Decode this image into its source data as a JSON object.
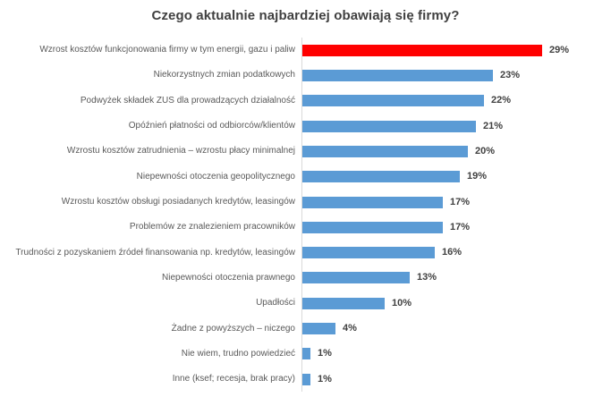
{
  "colors": {
    "highlight_bar": "#ff0000",
    "bar": "#5b9bd5",
    "axis_line": "#d9d9d9",
    "title_text": "#404040",
    "category_text": "#595959",
    "value_text": "#404040"
  },
  "chart_data": {
    "type": "bar",
    "orientation": "horizontal",
    "title": "Czego aktualnie najbardziej obawiają się firmy?",
    "categories": [
      "Wzrost kosztów funkcjonowania firmy w tym energii, gazu i paliw",
      "Niekorzystnych zmian podatkowych",
      "Podwyżek składek ZUS dla prowadzących działalność",
      "Opóźnień płatności od odbiorców/klientów",
      "Wzrostu kosztów zatrudnienia – wzrostu płacy minimalnej",
      "Niepewności otoczenia geopolitycznego",
      "Wzrostu kosztów obsługi posiadanych kredytów, leasingów",
      "Problemów ze znalezieniem pracowników",
      "Trudności z pozyskaniem źródeł finansowania np. kredytów, leasingów",
      "Niepewności otoczenia prawnego",
      "Upadłości",
      "Żadne z powyższych – niczego",
      "Nie wiem, trudno powiedzieć",
      "Inne (ksef; recesja, brak pracy)"
    ],
    "values": [
      29,
      23,
      22,
      21,
      20,
      19,
      17,
      17,
      16,
      13,
      10,
      4,
      1,
      1
    ],
    "value_suffix": "%",
    "highlight_index": 0,
    "xlim": [
      0,
      29
    ],
    "xlabel": "",
    "ylabel": "",
    "grid": false,
    "legend": false,
    "data_labels": true
  }
}
